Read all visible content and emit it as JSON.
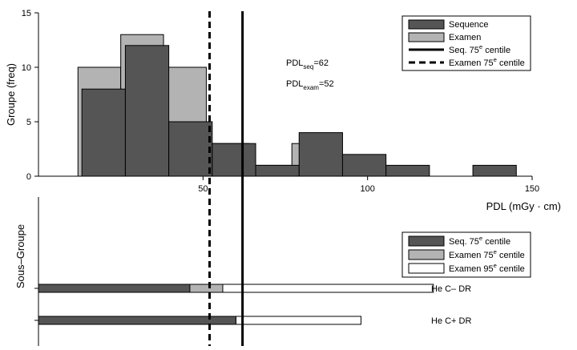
{
  "chart_data": [
    {
      "type": "bar",
      "subtype": "histogram",
      "xlabel": "PDL (mGy · cm)",
      "ylabel": "Groupe (freq)",
      "xlim": [
        0,
        150
      ],
      "ylim": [
        0,
        15
      ],
      "x_ticks": [
        "50",
        "100",
        "150"
      ],
      "y_ticks": [
        "0",
        "5",
        "10",
        "15"
      ],
      "series": [
        {
          "name": "Examen",
          "color": "#b3b3b3",
          "bins": [
            {
              "x0": 12,
              "x1": 25,
              "y": 10
            },
            {
              "x0": 25,
              "x1": 38,
              "y": 13
            },
            {
              "x0": 38,
              "x1": 51,
              "y": 10
            },
            {
              "x0": 51,
              "x1": 64,
              "y": 3
            },
            {
              "x0": 64,
              "x1": 77,
              "y": 1
            },
            {
              "x0": 77,
              "x1": 90,
              "y": 3
            }
          ]
        },
        {
          "name": "Sequence",
          "color": "#555555",
          "bins": [
            {
              "x0": 13.2,
              "x1": 26.4,
              "y": 8
            },
            {
              "x0": 26.4,
              "x1": 39.6,
              "y": 12
            },
            {
              "x0": 39.6,
              "x1": 52.8,
              "y": 5
            },
            {
              "x0": 52.8,
              "x1": 66,
              "y": 3
            },
            {
              "x0": 66,
              "x1": 79.2,
              "y": 1
            },
            {
              "x0": 79.2,
              "x1": 92.4,
              "y": 4
            },
            {
              "x0": 92.4,
              "x1": 105.6,
              "y": 2
            },
            {
              "x0": 105.6,
              "x1": 118.8,
              "y": 1
            },
            {
              "x0": 132,
              "x1": 145.2,
              "y": 1
            }
          ]
        }
      ],
      "vlines": [
        {
          "name": "Seq. 75e centile",
          "x": 62,
          "style": "solid"
        },
        {
          "name": "Examen 75e centile",
          "x": 52,
          "style": "dashed"
        }
      ],
      "annotations": [
        {
          "base": "PDL",
          "sub": "seq",
          "rest": "=62"
        },
        {
          "base": "PDL",
          "sub": "exam",
          "rest": "=52"
        }
      ],
      "legend": {
        "placement": "top-right",
        "entries": [
          {
            "kind": "box",
            "color": "#555555",
            "text": "Sequence"
          },
          {
            "kind": "box",
            "color": "#b3b3b3",
            "text": "Examen"
          },
          {
            "kind": "line",
            "style": "solid",
            "pre": "Seq. 75",
            "sup": "e",
            "post": " centile"
          },
          {
            "kind": "line",
            "style": "dashed",
            "pre": "Examen 75",
            "sup": "e",
            "post": " centile"
          }
        ]
      }
    },
    {
      "type": "bar",
      "subtype": "horizontal-stacked",
      "ylabel": "Sous–Groupe",
      "xlim": [
        0,
        150
      ],
      "groups": [
        {
          "label": "He C– DR",
          "seq75": 46,
          "exam75": 56,
          "exam95": 120
        },
        {
          "label": "He C+ DR",
          "seq75": 60,
          "exam75": 60,
          "exam95": 98
        }
      ],
      "legend": {
        "placement": "top-right",
        "entries": [
          {
            "color": "#555555",
            "pre": "Seq. 75",
            "sup": "e",
            "post": " centile"
          },
          {
            "color": "#b3b3b3",
            "pre": "Examen 75",
            "sup": "e",
            "post": " centile"
          },
          {
            "color": "#ffffff",
            "pre": "Examen 95",
            "sup": "e",
            "post": " centile"
          }
        ]
      }
    }
  ]
}
